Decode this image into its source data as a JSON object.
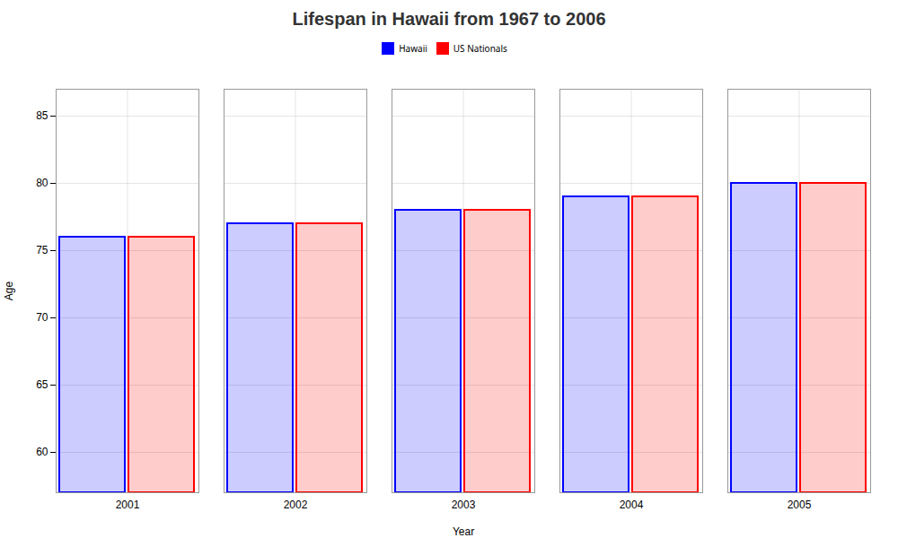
{
  "chart_data": {
    "type": "bar",
    "title": "Lifespan in Hawaii from 1967 to 2006",
    "xlabel": "Year",
    "ylabel": "Age",
    "categories": [
      "2001",
      "2002",
      "2003",
      "2004",
      "2005"
    ],
    "series": [
      {
        "name": "Hawaii",
        "color": "#0000ff",
        "values": [
          76,
          77,
          78,
          79,
          80
        ]
      },
      {
        "name": "US Nationals",
        "color": "#ff0000",
        "values": [
          76,
          77,
          78,
          79,
          80
        ]
      }
    ],
    "ylim": [
      57,
      87
    ],
    "yticks": [
      60,
      65,
      70,
      75,
      80,
      85
    ],
    "grid": true,
    "legend": "upper center"
  }
}
